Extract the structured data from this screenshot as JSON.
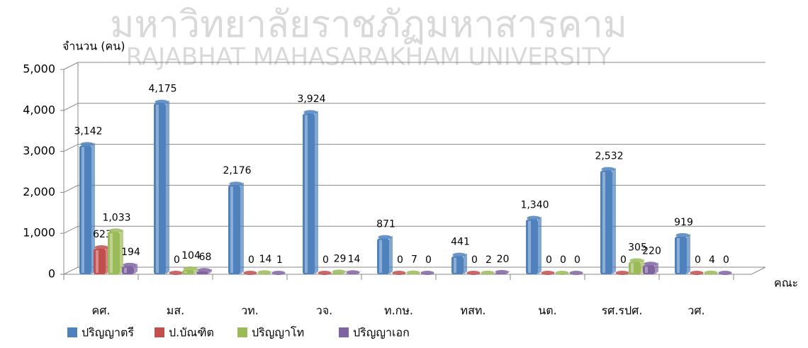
{
  "watermark": [
    "มหาวิทยาลัยราชภัฏมหาสารคาม",
    "RAJABHAT MAHASARAKHAM UNIVERSITY"
  ],
  "chart_data": {
    "type": "bar",
    "y_label": "จำนวน (คน)",
    "x_label": "คณะ",
    "categories": [
      "คศ.",
      "มส.",
      "วท.",
      "วจ.",
      "ท.กษ.",
      "ทสท.",
      "นต.",
      "รศ.รปศ.",
      "วศ."
    ],
    "series": [
      {
        "name": "ปริญญาตรี",
        "color": "#4f81bd",
        "values": [
          3142,
          4175,
          2176,
          3924,
          871,
          441,
          1340,
          2532,
          919
        ],
        "value_labels": [
          "3,142",
          "4,175",
          "2,176",
          "3,924",
          "871",
          "441",
          "1,340",
          "2,532",
          "919"
        ]
      },
      {
        "name": "ป.บัณฑิต",
        "color": "#c0504d",
        "values": [
          623,
          0,
          0,
          0,
          0,
          0,
          0,
          0,
          0
        ]
      },
      {
        "name": "ปริญญาโท",
        "color": "#9bbb59",
        "values": [
          1033,
          104,
          14,
          29,
          7,
          2,
          0,
          305,
          4
        ],
        "value_labels": [
          "1,033",
          "104",
          "14",
          "29",
          "7",
          "2",
          "0",
          "305",
          "4"
        ]
      },
      {
        "name": "ปริญญาเอก",
        "color": "#8064a2",
        "values": [
          194,
          68,
          1,
          14,
          0,
          20,
          0,
          220,
          0
        ]
      }
    ],
    "ylim": [
      0,
      5000
    ],
    "yticks": [
      {
        "value": 0,
        "label": "0"
      },
      {
        "value": 1000,
        "label": "1,000"
      },
      {
        "value": 2000,
        "label": "2,000"
      },
      {
        "value": 3000,
        "label": "3,000"
      },
      {
        "value": 4000,
        "label": "4,000"
      },
      {
        "value": 5000,
        "label": "5,000"
      }
    ],
    "grid": true,
    "legend": "bottom"
  }
}
